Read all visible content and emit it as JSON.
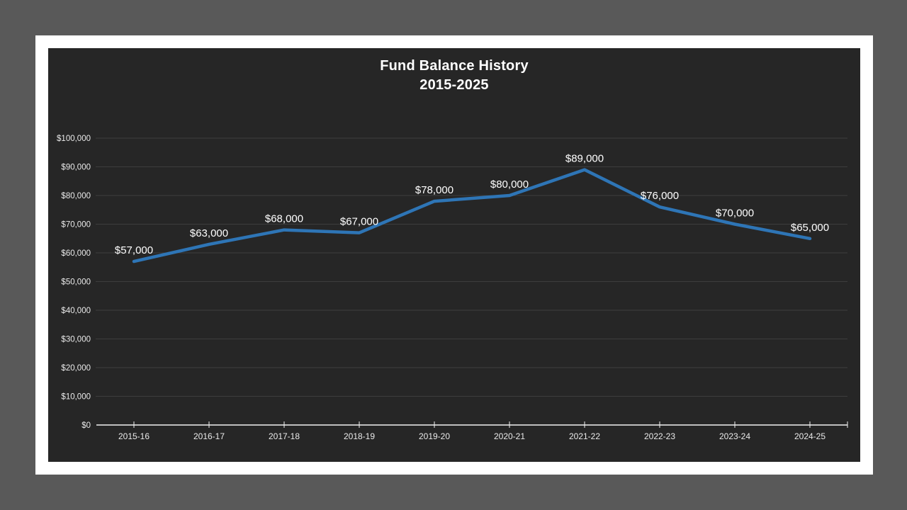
{
  "chart_data": {
    "type": "line",
    "title": "Fund Balance History",
    "subtitle": "2015-2025",
    "categories": [
      "2015-16",
      "2016-17",
      "2017-18",
      "2018-19",
      "2019-20",
      "2020-21",
      "2021-22",
      "2022-23",
      "2023-24",
      "2024-25"
    ],
    "series": [
      {
        "name": "Fund Balance",
        "values": [
          57000,
          63000,
          68000,
          67000,
          78000,
          80000,
          89000,
          76000,
          70000,
          65000
        ]
      }
    ],
    "data_labels": [
      "$57,000",
      "$63,000",
      "$68,000",
      "$67,000",
      "$78,000",
      "$80,000",
      "$89,000",
      "$76,000",
      "$70,000",
      "$65,000"
    ],
    "y_tick_labels": [
      "$0",
      "$10,000",
      "$20,000",
      "$30,000",
      "$40,000",
      "$50,000",
      "$60,000",
      "$70,000",
      "$80,000",
      "$90,000",
      "$100,000"
    ],
    "ylim": [
      0,
      100000
    ],
    "y_tick_step": 10000,
    "xlabel": "",
    "ylabel": "",
    "grid": true,
    "legend": "none",
    "colors": {
      "line": "#2e75b6",
      "gridline": "#3d3d3d",
      "axis_line": "#f2f2f2",
      "axis_text": "#eaeaea",
      "label_text": "#ffffff",
      "chart_background": "#262626",
      "slide_background": "#ffffff",
      "page_background": "#595959"
    }
  }
}
